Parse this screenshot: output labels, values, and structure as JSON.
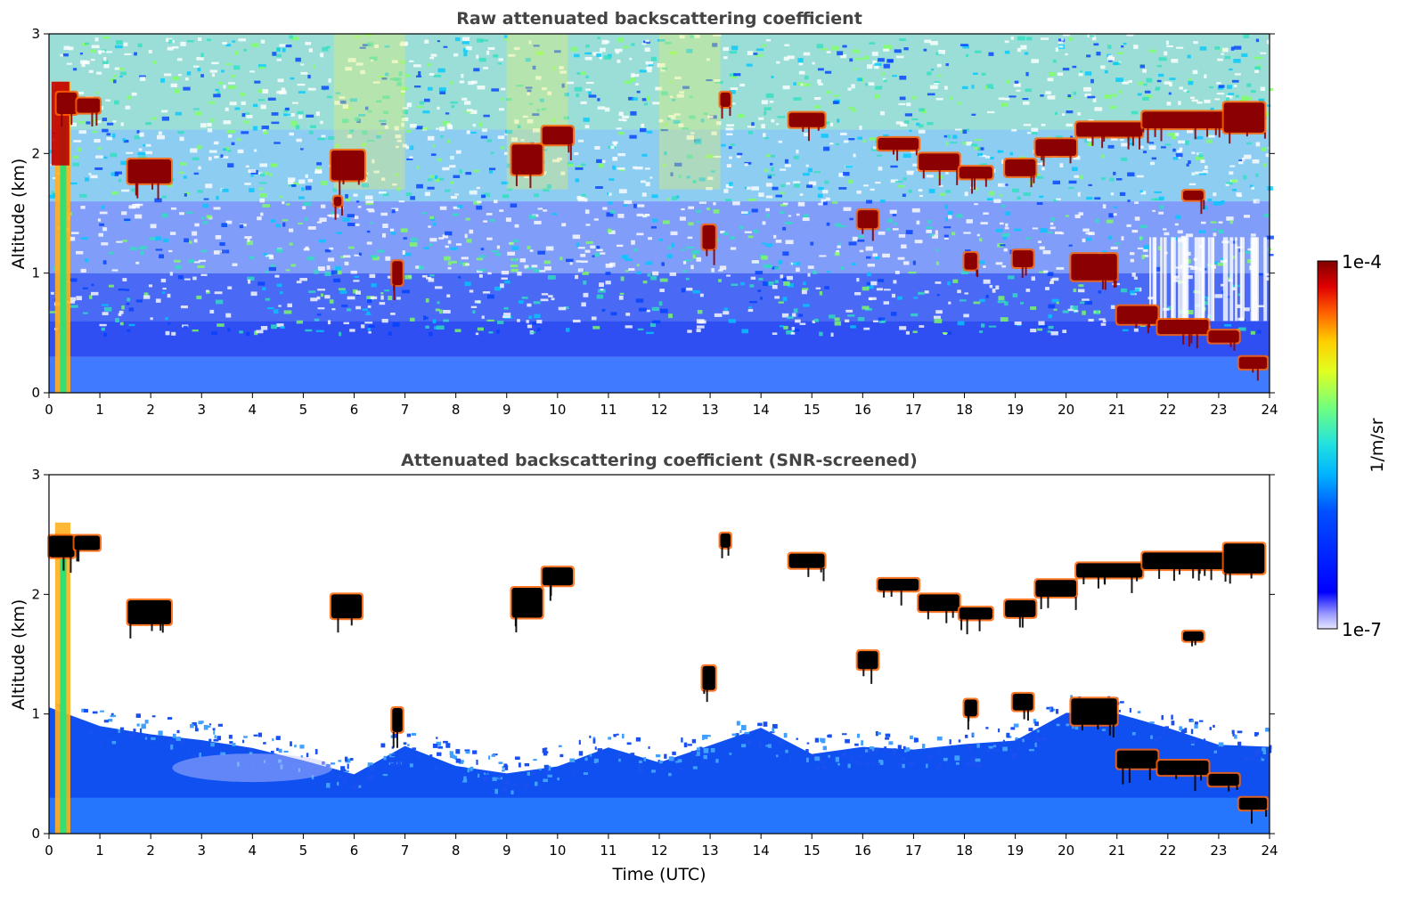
{
  "chart_data": [
    {
      "type": "heatmap",
      "title": "Raw attenuated backscattering coefficient",
      "xlabel": "",
      "ylabel": "Altitude (km)",
      "xlim": [
        0,
        24
      ],
      "ylim": [
        0,
        3
      ],
      "xticks": [
        "0",
        "1",
        "2",
        "3",
        "4",
        "5",
        "6",
        "7",
        "8",
        "9",
        "10",
        "11",
        "12",
        "13",
        "14",
        "15",
        "16",
        "17",
        "18",
        "19",
        "20",
        "21",
        "22",
        "23",
        "24"
      ],
      "yticks": [
        "0",
        "1",
        "2",
        "3"
      ],
      "mode": "raw",
      "clouds": [
        {
          "t0": 0.15,
          "t1": 0.55,
          "h": 2.42,
          "th": 0.18
        },
        {
          "t0": 0.55,
          "t1": 1.0,
          "h": 2.4,
          "th": 0.12
        },
        {
          "t0": 1.55,
          "t1": 2.4,
          "h": 1.85,
          "th": 0.2
        },
        {
          "t0": 5.55,
          "t1": 6.2,
          "h": 1.9,
          "th": 0.25
        },
        {
          "t0": 5.6,
          "t1": 5.75,
          "h": 1.6,
          "th": 0.08
        },
        {
          "t0": 6.75,
          "t1": 6.95,
          "h": 1.0,
          "th": 0.2
        },
        {
          "t0": 9.1,
          "t1": 9.7,
          "h": 1.95,
          "th": 0.25
        },
        {
          "t0": 9.7,
          "t1": 10.3,
          "h": 2.15,
          "th": 0.15
        },
        {
          "t0": 12.85,
          "t1": 13.1,
          "h": 1.3,
          "th": 0.2
        },
        {
          "t0": 13.2,
          "t1": 13.4,
          "h": 2.45,
          "th": 0.12
        },
        {
          "t0": 14.55,
          "t1": 15.25,
          "h": 2.28,
          "th": 0.12
        },
        {
          "t0": 15.9,
          "t1": 16.3,
          "h": 1.45,
          "th": 0.15
        },
        {
          "t0": 16.3,
          "t1": 17.1,
          "h": 2.08,
          "th": 0.1
        },
        {
          "t0": 17.1,
          "t1": 17.9,
          "h": 1.93,
          "th": 0.14
        },
        {
          "t0": 17.9,
          "t1": 18.55,
          "h": 1.84,
          "th": 0.1
        },
        {
          "t0": 18.8,
          "t1": 19.4,
          "h": 1.88,
          "th": 0.14
        },
        {
          "t0": 19.4,
          "t1": 20.2,
          "h": 2.05,
          "th": 0.14
        },
        {
          "t0": 20.2,
          "t1": 21.5,
          "h": 2.2,
          "th": 0.12
        },
        {
          "t0": 21.5,
          "t1": 23.3,
          "h": 2.28,
          "th": 0.14
        },
        {
          "t0": 23.1,
          "t1": 23.9,
          "h": 2.3,
          "th": 0.25
        },
        {
          "t0": 18.0,
          "t1": 18.25,
          "h": 1.1,
          "th": 0.14
        },
        {
          "t0": 18.95,
          "t1": 19.35,
          "h": 1.12,
          "th": 0.14
        },
        {
          "t0": 20.1,
          "t1": 21.0,
          "h": 1.05,
          "th": 0.22
        },
        {
          "t0": 21.0,
          "t1": 21.8,
          "h": 0.65,
          "th": 0.15
        },
        {
          "t0": 21.8,
          "t1": 22.8,
          "h": 0.55,
          "th": 0.12
        },
        {
          "t0": 22.8,
          "t1": 23.4,
          "h": 0.47,
          "th": 0.1
        },
        {
          "t0": 23.4,
          "t1": 23.95,
          "h": 0.25,
          "th": 0.1
        },
        {
          "t0": 22.3,
          "t1": 22.7,
          "h": 1.65,
          "th": 0.08
        }
      ]
    },
    {
      "type": "heatmap",
      "title": "Attenuated backscattering coefficient (SNR-screened)",
      "xlabel": "Time (UTC)",
      "ylabel": "Altitude (km)",
      "xlim": [
        0,
        24
      ],
      "ylim": [
        0,
        3
      ],
      "xticks": [
        "0",
        "1",
        "2",
        "3",
        "4",
        "5",
        "6",
        "7",
        "8",
        "9",
        "10",
        "11",
        "12",
        "13",
        "14",
        "15",
        "16",
        "17",
        "18",
        "19",
        "20",
        "21",
        "22",
        "23",
        "24"
      ],
      "yticks": [
        "0",
        "1",
        "2",
        "3"
      ],
      "mode": "screened",
      "boundary_layer_top": [
        {
          "t": 0,
          "h": 1.05
        },
        {
          "t": 1,
          "h": 0.9
        },
        {
          "t": 2,
          "h": 0.85
        },
        {
          "t": 3,
          "h": 0.8
        },
        {
          "t": 4,
          "h": 0.72
        },
        {
          "t": 5,
          "h": 0.62
        },
        {
          "t": 6,
          "h": 0.5
        },
        {
          "t": 7,
          "h": 0.75
        },
        {
          "t": 8,
          "h": 0.6
        },
        {
          "t": 9,
          "h": 0.5
        },
        {
          "t": 10,
          "h": 0.6
        },
        {
          "t": 11,
          "h": 0.72
        },
        {
          "t": 12,
          "h": 0.6
        },
        {
          "t": 13,
          "h": 0.75
        },
        {
          "t": 14,
          "h": 0.85
        },
        {
          "t": 15,
          "h": 0.7
        },
        {
          "t": 16,
          "h": 0.72
        },
        {
          "t": 17,
          "h": 0.68
        },
        {
          "t": 18,
          "h": 0.72
        },
        {
          "t": 19,
          "h": 0.78
        },
        {
          "t": 20,
          "h": 1.02
        },
        {
          "t": 21,
          "h": 1.0
        },
        {
          "t": 22,
          "h": 0.85
        },
        {
          "t": 23,
          "h": 0.78
        },
        {
          "t": 24,
          "h": 0.75
        }
      ],
      "clouds": [
        {
          "t0": 0.0,
          "t1": 0.5,
          "h": 2.4,
          "th": 0.18
        },
        {
          "t0": 0.5,
          "t1": 1.0,
          "h": 2.43,
          "th": 0.12
        },
        {
          "t0": 1.55,
          "t1": 2.4,
          "h": 1.85,
          "th": 0.2
        },
        {
          "t0": 5.55,
          "t1": 6.15,
          "h": 1.9,
          "th": 0.2
        },
        {
          "t0": 6.75,
          "t1": 6.95,
          "h": 0.95,
          "th": 0.2
        },
        {
          "t0": 9.1,
          "t1": 9.7,
          "h": 1.93,
          "th": 0.25
        },
        {
          "t0": 9.7,
          "t1": 10.3,
          "h": 2.15,
          "th": 0.15
        },
        {
          "t0": 12.85,
          "t1": 13.1,
          "h": 1.3,
          "th": 0.2
        },
        {
          "t0": 13.2,
          "t1": 13.4,
          "h": 2.45,
          "th": 0.12
        },
        {
          "t0": 14.55,
          "t1": 15.25,
          "h": 2.28,
          "th": 0.12
        },
        {
          "t0": 15.9,
          "t1": 16.3,
          "h": 1.45,
          "th": 0.15
        },
        {
          "t0": 16.3,
          "t1": 17.1,
          "h": 2.08,
          "th": 0.1
        },
        {
          "t0": 17.1,
          "t1": 17.9,
          "h": 1.93,
          "th": 0.14
        },
        {
          "t0": 17.9,
          "t1": 18.55,
          "h": 1.84,
          "th": 0.1
        },
        {
          "t0": 18.8,
          "t1": 19.4,
          "h": 1.88,
          "th": 0.14
        },
        {
          "t0": 19.4,
          "t1": 20.2,
          "h": 2.05,
          "th": 0.14
        },
        {
          "t0": 20.2,
          "t1": 21.5,
          "h": 2.2,
          "th": 0.12
        },
        {
          "t0": 21.5,
          "t1": 23.3,
          "h": 2.28,
          "th": 0.14
        },
        {
          "t0": 23.1,
          "t1": 23.9,
          "h": 2.3,
          "th": 0.25
        },
        {
          "t0": 18.0,
          "t1": 18.25,
          "h": 1.05,
          "th": 0.14
        },
        {
          "t0": 18.95,
          "t1": 19.35,
          "h": 1.1,
          "th": 0.14
        },
        {
          "t0": 20.1,
          "t1": 21.0,
          "h": 1.02,
          "th": 0.22
        },
        {
          "t0": 21.0,
          "t1": 21.8,
          "h": 0.62,
          "th": 0.15
        },
        {
          "t0": 21.8,
          "t1": 22.8,
          "h": 0.55,
          "th": 0.12
        },
        {
          "t0": 22.8,
          "t1": 23.4,
          "h": 0.45,
          "th": 0.1
        },
        {
          "t0": 23.4,
          "t1": 23.95,
          "h": 0.25,
          "th": 0.1
        },
        {
          "t0": 22.3,
          "t1": 22.7,
          "h": 1.65,
          "th": 0.08
        }
      ]
    }
  ],
  "colorbar": {
    "label": "1/m/sr",
    "max_label": "1e-4",
    "min_label": "1e-7",
    "scale": "log",
    "range": [
      "1e-7",
      "1e-4"
    ],
    "colormap": "jet"
  },
  "colors": {
    "title": "#444444",
    "cloud_core_raw": "#8b0000",
    "cloud_core_screened": "#000000",
    "ground_layer": "#0000e6"
  }
}
